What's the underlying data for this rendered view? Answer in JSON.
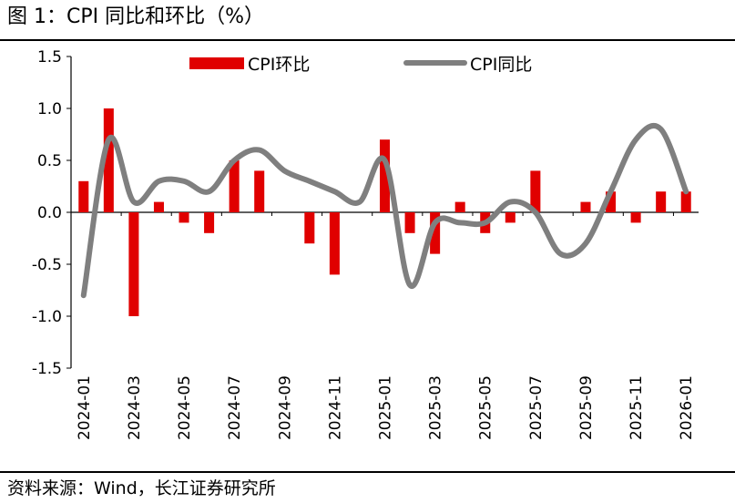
{
  "header": {
    "title": "图 1：CPI 同比和环比（%）"
  },
  "footer": {
    "source": "资料来源：Wind，长江证券研究所"
  },
  "chart_data": {
    "type": "bar",
    "title": "图 1：CPI 同比和环比（%）",
    "xlabel": "",
    "ylabel": "",
    "ylim": [
      -1.5,
      1.5
    ],
    "yticks": [
      1.5,
      1.0,
      0.5,
      0.0,
      -0.5,
      -1.0,
      -1.5
    ],
    "ytick_labels": [
      "1.5",
      "1.0",
      "0.5",
      "0.0",
      "-0.5",
      "-1.0",
      "-1.5"
    ],
    "grid": false,
    "legend_position": "top",
    "categories": [
      "2024-01",
      "2024-02",
      "2024-03",
      "2024-04",
      "2024-05",
      "2024-06",
      "2024-07",
      "2024-08",
      "2024-09",
      "2024-10",
      "2024-11",
      "2024-12",
      "2025-01",
      "2025-02",
      "2025-03",
      "2025-04",
      "2025-05",
      "2025-06",
      "2025-07",
      "2025-08",
      "2025-09",
      "2025-10",
      "2025-11",
      "2025-12",
      "2026-01"
    ],
    "xtick_labels": [
      "2024-01",
      "2024-03",
      "2024-05",
      "2024-07",
      "2024-09",
      "2024-11",
      "2025-01",
      "2025-03",
      "2025-05",
      "2025-07",
      "2025-09",
      "2025-11",
      "2026-01"
    ],
    "series": [
      {
        "name": "CPI环比",
        "type": "bar",
        "color": "#e00000",
        "values": [
          0.3,
          1.0,
          -1.0,
          0.1,
          -0.1,
          -0.2,
          0.5,
          0.4,
          0.0,
          -0.3,
          -0.6,
          0.0,
          0.7,
          -0.2,
          -0.4,
          0.1,
          -0.2,
          -0.1,
          0.4,
          0.0,
          0.1,
          0.2,
          -0.1,
          0.2,
          0.2
        ]
      },
      {
        "name": "CPI同比",
        "type": "line",
        "color": "#7f7f7f",
        "values": [
          -0.8,
          0.7,
          0.1,
          0.3,
          0.3,
          0.2,
          0.5,
          0.6,
          0.4,
          0.3,
          0.2,
          0.1,
          0.5,
          -0.7,
          -0.1,
          -0.1,
          -0.1,
          0.1,
          0.0,
          -0.4,
          -0.3,
          0.2,
          0.7,
          0.8,
          0.2
        ]
      }
    ]
  }
}
